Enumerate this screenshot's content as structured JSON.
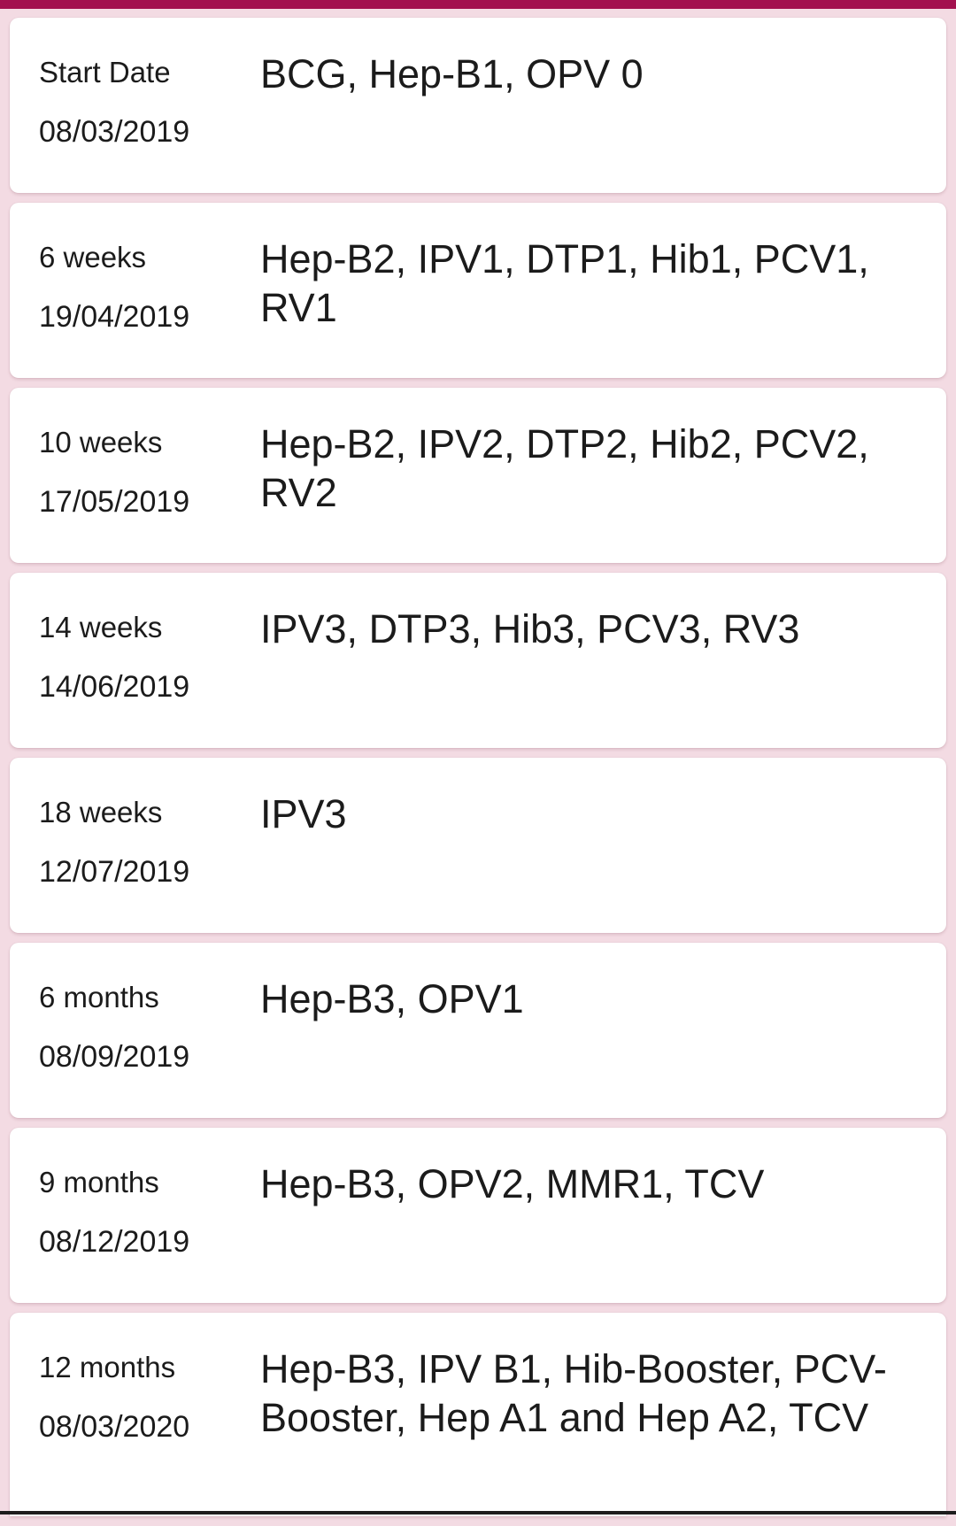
{
  "schedule": [
    {
      "age": "Start Date",
      "date": "08/03/2019",
      "vaccines": "BCG, Hep-B1, OPV 0"
    },
    {
      "age": "6 weeks",
      "date": "19/04/2019",
      "vaccines": "Hep-B2, IPV1, DTP1, Hib1, PCV1, RV1"
    },
    {
      "age": "10 weeks",
      "date": "17/05/2019",
      "vaccines": "Hep-B2, IPV2, DTP2, Hib2, PCV2, RV2"
    },
    {
      "age": "14 weeks",
      "date": "14/06/2019",
      "vaccines": "IPV3, DTP3, Hib3, PCV3, RV3"
    },
    {
      "age": "18 weeks",
      "date": "12/07/2019",
      "vaccines": "IPV3"
    },
    {
      "age": "6 months",
      "date": "08/09/2019",
      "vaccines": "Hep-B3, OPV1"
    },
    {
      "age": "9 months",
      "date": "08/12/2019",
      "vaccines": "Hep-B3, OPV2, MMR1, TCV"
    },
    {
      "age": "12 months",
      "date": "08/03/2020",
      "vaccines": "Hep-B3, IPV B1, Hib-Booster, PCV-Booster, Hep A1 and Hep A2, TCV"
    }
  ]
}
